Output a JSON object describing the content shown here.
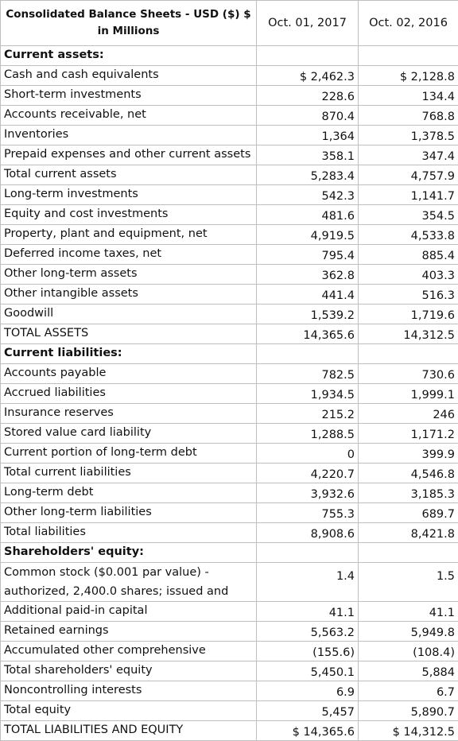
{
  "table": {
    "title": "Consolidated Balance Sheets - USD ($) $ in Millions",
    "columns": [
      "Oct. 01, 2017",
      "Oct. 02, 2016"
    ],
    "rows": [
      {
        "label": "Current assets:",
        "section": true,
        "v1": "",
        "v2": ""
      },
      {
        "label": "Cash and cash equivalents",
        "v1": "$ 2,462.3",
        "v2": "$ 2,128.8"
      },
      {
        "label": "Short-term investments",
        "v1": "228.6",
        "v2": "134.4"
      },
      {
        "label": "Accounts receivable, net",
        "v1": "870.4",
        "v2": "768.8"
      },
      {
        "label": "Inventories",
        "v1": "1,364",
        "v2": "1,378.5"
      },
      {
        "label": "Prepaid expenses and other current assets",
        "v1": "358.1",
        "v2": "347.4"
      },
      {
        "label": "Total current assets",
        "v1": "5,283.4",
        "v2": "4,757.9"
      },
      {
        "label": "Long-term investments",
        "v1": "542.3",
        "v2": "1,141.7"
      },
      {
        "label": "Equity and cost investments",
        "v1": "481.6",
        "v2": "354.5"
      },
      {
        "label": "Property, plant and equipment, net",
        "v1": "4,919.5",
        "v2": "4,533.8"
      },
      {
        "label": "Deferred income taxes, net",
        "v1": "795.4",
        "v2": "885.4"
      },
      {
        "label": "Other long-term assets",
        "v1": "362.8",
        "v2": "403.3"
      },
      {
        "label": "Other intangible assets",
        "v1": "441.4",
        "v2": "516.3"
      },
      {
        "label": "Goodwill",
        "v1": "1,539.2",
        "v2": "1,719.6"
      },
      {
        "label": "TOTAL ASSETS",
        "v1": "14,365.6",
        "v2": "14,312.5"
      },
      {
        "label": "Current liabilities:",
        "section": true,
        "v1": "",
        "v2": ""
      },
      {
        "label": "Accounts payable",
        "v1": "782.5",
        "v2": "730.6"
      },
      {
        "label": "Accrued liabilities",
        "v1": "1,934.5",
        "v2": "1,999.1"
      },
      {
        "label": "Insurance reserves",
        "v1": "215.2",
        "v2": "246"
      },
      {
        "label": "Stored value card liability",
        "v1": "1,288.5",
        "v2": "1,171.2"
      },
      {
        "label": "Current portion of long-term debt",
        "v1": "0",
        "v2": "399.9"
      },
      {
        "label": "Total current liabilities",
        "v1": "4,220.7",
        "v2": "4,546.8"
      },
      {
        "label": "Long-term debt",
        "v1": "3,932.6",
        "v2": "3,185.3"
      },
      {
        "label": "Other long-term liabilities",
        "v1": "755.3",
        "v2": "689.7"
      },
      {
        "label": "Total liabilities",
        "v1": "8,908.6",
        "v2": "8,421.8"
      },
      {
        "label": "Shareholders' equity:",
        "section": true,
        "v1": "",
        "v2": ""
      },
      {
        "label": "Common stock ($0.001 par value) - authorized, 2,400.0 shares; issued and",
        "tall": true,
        "v1": "1.4",
        "v2": "1.5"
      },
      {
        "label": "Additional paid-in capital",
        "v1": "41.1",
        "v2": "41.1"
      },
      {
        "label": "Retained earnings",
        "v1": "5,563.2",
        "v2": "5,949.8"
      },
      {
        "label": "Accumulated other comprehensive",
        "v1": "(155.6)",
        "v2": "(108.4)"
      },
      {
        "label": "Total shareholders' equity",
        "v1": "5,450.1",
        "v2": "5,884"
      },
      {
        "label": "Noncontrolling interests",
        "v1": "6.9",
        "v2": "6.7"
      },
      {
        "label": "Total equity",
        "v1": "5,457",
        "v2": "5,890.7"
      },
      {
        "label": "TOTAL LIABILITIES AND EQUITY",
        "v1": "$ 14,365.6",
        "v2": "$ 14,312.5"
      }
    ]
  }
}
